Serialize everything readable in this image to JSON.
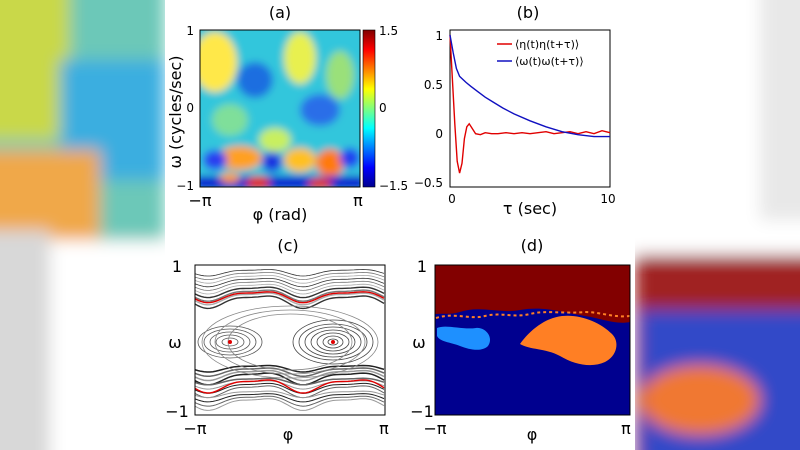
{
  "panels": {
    "a": {
      "label": "(a)",
      "type": "heatmap",
      "xlabel": "φ (rad)",
      "ylabel": "ω (cycles/sec)",
      "xticks": [
        "−π",
        "π"
      ],
      "yticks": [
        "1",
        "0",
        "−1"
      ],
      "colorbar": {
        "min": -1.5,
        "max": 1.5,
        "ticks": [
          "1.5",
          "0",
          "−1.5"
        ]
      }
    },
    "b": {
      "label": "(b)",
      "type": "line",
      "xlabel": "τ (sec)",
      "xlim": [
        0,
        10
      ],
      "ylim": [
        -0.5,
        1
      ],
      "xticks": [
        "0",
        "10"
      ],
      "yticks": [
        "1",
        "0.5",
        "0",
        "−0.5"
      ],
      "series": [
        {
          "name": "⟨η(t)η(t+τ)⟩",
          "color": "#e00000",
          "x": [
            0,
            0.15,
            0.3,
            0.45,
            0.6,
            0.75,
            0.9,
            1.05,
            1.2,
            1.4,
            1.6,
            1.9,
            2.2,
            2.6,
            3,
            3.5,
            4,
            4.5,
            5,
            5.5,
            6,
            6.5,
            7,
            7.5,
            8,
            8.5,
            9,
            9.5,
            10
          ],
          "y": [
            1,
            0.55,
            0.1,
            -0.28,
            -0.4,
            -0.3,
            -0.05,
            0.07,
            0.1,
            0.05,
            0.0,
            -0.01,
            0.01,
            0.0,
            0.0,
            0.01,
            0.0,
            0.01,
            0.0,
            0.01,
            0.02,
            0.0,
            0.01,
            0.02,
            0.0,
            0.02,
            0.0,
            0.03,
            0.01
          ]
        },
        {
          "name": "⟨ω(t)ω(t+τ)⟩",
          "color": "#1010c0",
          "x": [
            0,
            0.2,
            0.4,
            0.6,
            0.8,
            1.0,
            1.3,
            1.7,
            2.2,
            2.7,
            3.3,
            4,
            5,
            6,
            7,
            8,
            9,
            10
          ],
          "y": [
            1,
            0.82,
            0.66,
            0.58,
            0.55,
            0.52,
            0.48,
            0.43,
            0.37,
            0.32,
            0.26,
            0.2,
            0.13,
            0.07,
            0.02,
            -0.01,
            -0.03,
            -0.03
          ]
        }
      ]
    },
    "c": {
      "label": "(c)",
      "type": "phase-portrait",
      "xlabel": "φ",
      "ylabel": "ω",
      "xticks": [
        "−π",
        "π"
      ],
      "yticks": [
        "1",
        "−1"
      ]
    },
    "d": {
      "label": "(d)",
      "type": "basin-map",
      "xlabel": "φ",
      "ylabel": "ω",
      "xticks": [
        "−π",
        "π"
      ],
      "yticks": [
        "1",
        "−1"
      ],
      "colors": {
        "upper": "#820000",
        "lower": "#00008f",
        "orange": "#ff7f24",
        "light": "#1e90ff"
      }
    }
  }
}
